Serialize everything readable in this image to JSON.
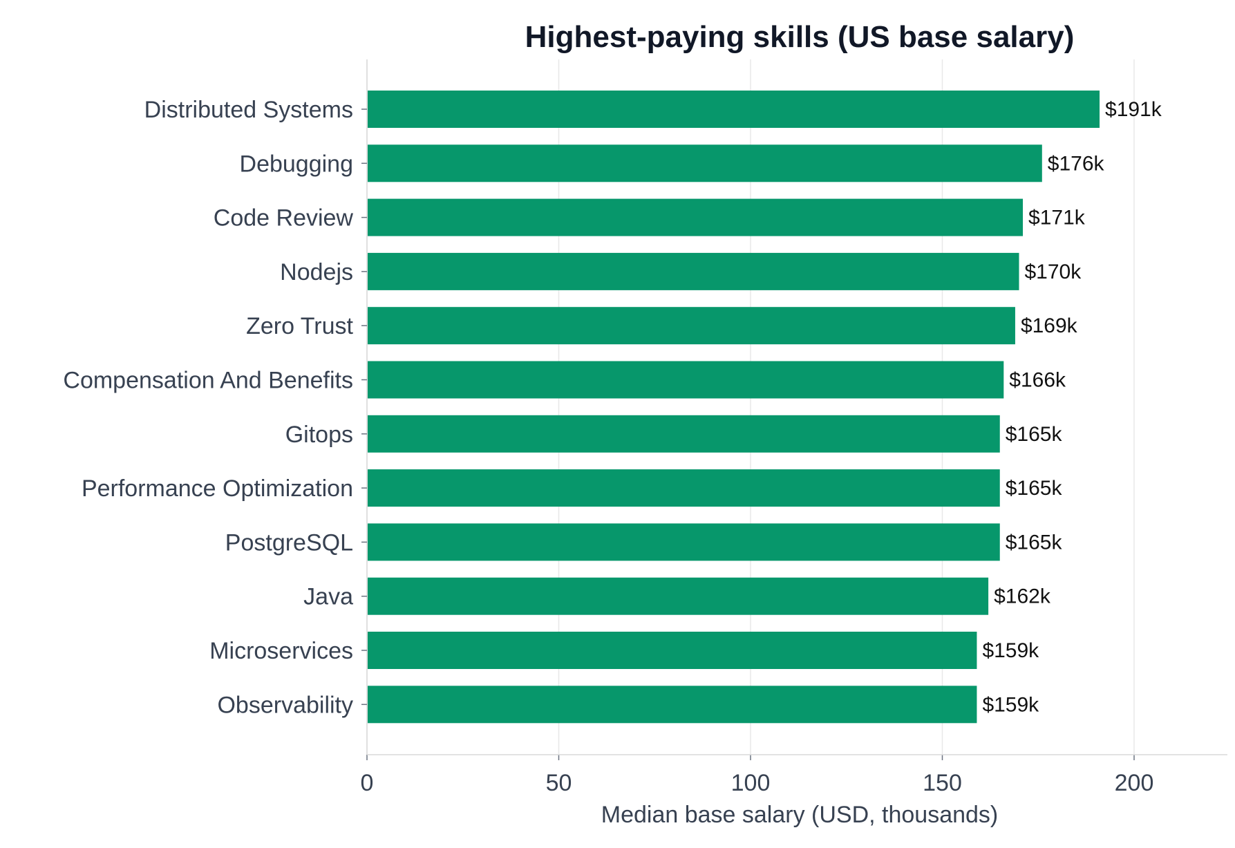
{
  "chart_data": {
    "type": "bar",
    "orientation": "horizontal",
    "title": "Highest-paying skills (US base salary)",
    "xlabel": "Median base salary (USD, thousands)",
    "ylabel": "",
    "xlim": [
      0,
      225
    ],
    "xticks": [
      0,
      50,
      100,
      150,
      200
    ],
    "grid": true,
    "categories": [
      "Distributed Systems",
      "Debugging",
      "Code Review",
      "Nodejs",
      "Zero Trust",
      "Compensation And Benefits",
      "Gitops",
      "Performance Optimization",
      "PostgreSQL",
      "Java",
      "Microservices",
      "Observability"
    ],
    "values": [
      191,
      176,
      171,
      170,
      169,
      166,
      165,
      165,
      165,
      162,
      159,
      159
    ],
    "data_labels": [
      "$191k",
      "$176k",
      "$171k",
      "$170k",
      "$169k",
      "$166k",
      "$165k",
      "$165k",
      "$165k",
      "$162k",
      "$159k",
      "$159k"
    ],
    "bar_color": "#07976b"
  }
}
